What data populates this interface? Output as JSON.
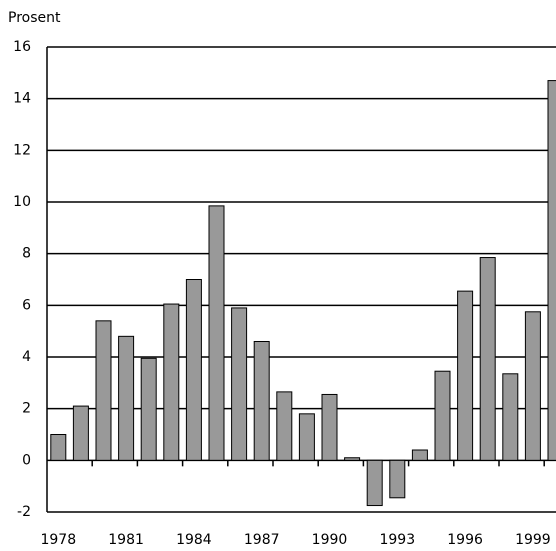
{
  "chart_data": {
    "type": "bar",
    "ylabel": "Prosent",
    "categories": [
      "1978",
      null,
      null,
      "1981",
      null,
      null,
      "1984",
      null,
      null,
      "1987",
      null,
      null,
      "1990",
      null,
      null,
      "1993",
      null,
      null,
      "1996",
      null,
      null,
      "1999",
      null
    ],
    "values": [
      1.0,
      2.1,
      5.4,
      4.8,
      3.95,
      6.05,
      7.0,
      9.85,
      5.9,
      4.6,
      2.65,
      1.8,
      2.55,
      0.1,
      -1.75,
      -1.45,
      0.4,
      3.45,
      6.55,
      7.85,
      3.35,
      5.75,
      14.7
    ],
    "color": "#999999",
    "ylim": [
      -2,
      16
    ],
    "yticks": [
      -2,
      0,
      2,
      4,
      6,
      8,
      10,
      12,
      14,
      16
    ],
    "grid": true
  }
}
